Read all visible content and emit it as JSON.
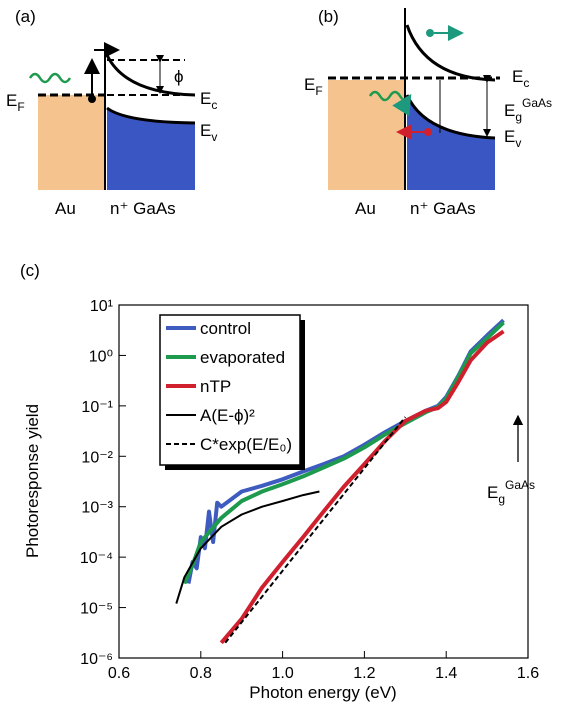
{
  "panel_a": {
    "label": "(a)",
    "fermi": {
      "main": "E",
      "sub": "F"
    },
    "phi": "ϕ",
    "conduction": {
      "main": "E",
      "sub": "c"
    },
    "valence": {
      "main": "E",
      "sub": "v"
    },
    "metal": "Au",
    "semiconductor": "n⁺ GaAs"
  },
  "panel_b": {
    "label": "(b)",
    "fermi": {
      "main": "E",
      "sub": "F"
    },
    "conduction": {
      "main": "E",
      "sub": "c"
    },
    "gap": {
      "main": "E",
      "sub": "g",
      "sup": "GaAs"
    },
    "valence": {
      "main": "E",
      "sub": "v"
    },
    "metal": "Au",
    "semiconductor": "n⁺ GaAs"
  },
  "chart_data": {
    "type": "line",
    "panel_label": "(c)",
    "x_label": "Photon energy (eV)",
    "y_label": "Photoresponse yield",
    "log_y": true,
    "xlim": [
      0.6,
      1.6
    ],
    "ylim": [
      1e-06,
      10
    ],
    "xticks": [
      0.6,
      0.8,
      {
        "value": 1,
        "label": "1.0"
      },
      1.2,
      1.4,
      1.6
    ],
    "yticks": [
      {
        "value": 1e-06,
        "label": "10⁻⁶"
      },
      {
        "value": 1e-05,
        "label": "10⁻⁵"
      },
      {
        "value": 0.0001,
        "label": "10⁻⁴"
      },
      {
        "value": 0.001,
        "label": "10⁻³"
      },
      {
        "value": 0.01,
        "label": "10⁻²"
      },
      {
        "value": 0.1,
        "label": "10⁻¹"
      },
      {
        "value": 1,
        "label": "10⁰"
      },
      {
        "value": 10,
        "label": "10¹"
      }
    ],
    "annotation": {
      "main": "E",
      "sub": "g",
      "sup": "GaAs"
    },
    "series": [
      {
        "name": "control",
        "color": "#3e5cc0",
        "dash": false,
        "x": [
          0.77,
          0.78,
          0.79,
          0.8,
          0.81,
          0.82,
          0.83,
          0.84,
          0.85,
          0.9,
          0.95,
          1.0,
          1.05,
          1.1,
          1.15,
          1.2,
          1.25,
          1.3,
          1.35,
          1.38,
          1.4,
          1.43,
          1.46,
          1.5,
          1.54
        ],
        "values": [
          3e-05,
          8e-05,
          6e-05,
          0.00025,
          0.00015,
          0.0008,
          0.0002,
          0.0012,
          0.001,
          0.002,
          0.0026,
          0.0035,
          0.005,
          0.007,
          0.01,
          0.017,
          0.03,
          0.05,
          0.08,
          0.1,
          0.15,
          0.4,
          1.2,
          2.5,
          5
        ]
      },
      {
        "name": "evaporated",
        "color": "#1d9a4e",
        "dash": false,
        "x": [
          0.76,
          0.78,
          0.8,
          0.85,
          0.9,
          0.95,
          1.0,
          1.05,
          1.1,
          1.15,
          1.2,
          1.25,
          1.3,
          1.35,
          1.38,
          1.4,
          1.43,
          1.46,
          1.5,
          1.54
        ],
        "values": [
          3e-05,
          7e-05,
          0.0002,
          0.0006,
          0.0013,
          0.002,
          0.0028,
          0.004,
          0.006,
          0.009,
          0.015,
          0.027,
          0.045,
          0.075,
          0.095,
          0.14,
          0.38,
          1.1,
          2.2,
          4.5
        ]
      },
      {
        "name": "nTP",
        "color": "#d0202e",
        "dash": false,
        "x": [
          0.85,
          0.9,
          0.95,
          1.0,
          1.05,
          1.1,
          1.15,
          1.2,
          1.25,
          1.3,
          1.35,
          1.38,
          1.4,
          1.43,
          1.46,
          1.5,
          1.54
        ],
        "values": [
          2e-06,
          6e-06,
          2.5e-05,
          8e-05,
          0.00025,
          0.0008,
          0.0025,
          0.007,
          0.02,
          0.05,
          0.08,
          0.09,
          0.12,
          0.3,
          0.8,
          1.8,
          3
        ]
      },
      {
        "name": "A(E-ϕ)²",
        "color": "#000000",
        "dash": false,
        "x": [
          0.74,
          0.76,
          0.8,
          0.85,
          0.9,
          0.95,
          1.0,
          1.05,
          1.09
        ],
        "values": [
          1.2e-05,
          4e-05,
          0.00015,
          0.0004,
          0.0007,
          0.001,
          0.0013,
          0.0017,
          0.002
        ]
      },
      {
        "name": "C*exp(E/E₀)",
        "color": "#000000",
        "dash": true,
        "x": [
          0.86,
          1.08,
          1.3
        ],
        "values": [
          2e-06,
          0.00035,
          0.06
        ]
      }
    ]
  }
}
